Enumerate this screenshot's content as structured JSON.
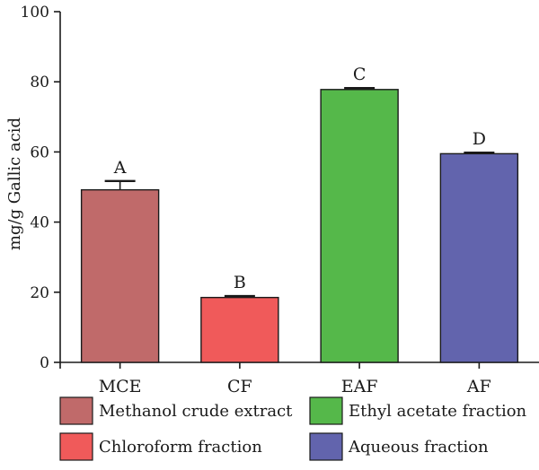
{
  "chart_data": {
    "type": "bar",
    "title": "",
    "xlabel": "",
    "ylabel": "mg/g Gallic acid",
    "ylim": [
      0,
      100
    ],
    "yticks": [
      0,
      20,
      40,
      60,
      80,
      100
    ],
    "categories": [
      "MCE",
      "CF",
      "EAF",
      "AF"
    ],
    "values": [
      49.2,
      18.5,
      77.8,
      59.5
    ],
    "errors": [
      2.5,
      0.4,
      0.4,
      0.3
    ],
    "letters": [
      "A",
      "B",
      "C",
      "D"
    ],
    "colors": [
      "#c06a6a",
      "#f05a5a",
      "#55b84a",
      "#6264ad"
    ],
    "grid": false,
    "legend_position": "bottom",
    "legend": [
      {
        "label": "Methanol crude extract",
        "color": "#c06a6a"
      },
      {
        "label": "Ethyl acetate fraction",
        "color": "#55b84a"
      },
      {
        "label": "Chloroform fraction",
        "color": "#f05a5a"
      },
      {
        "label": "Aqueous fraction",
        "color": "#6264ad"
      }
    ]
  }
}
